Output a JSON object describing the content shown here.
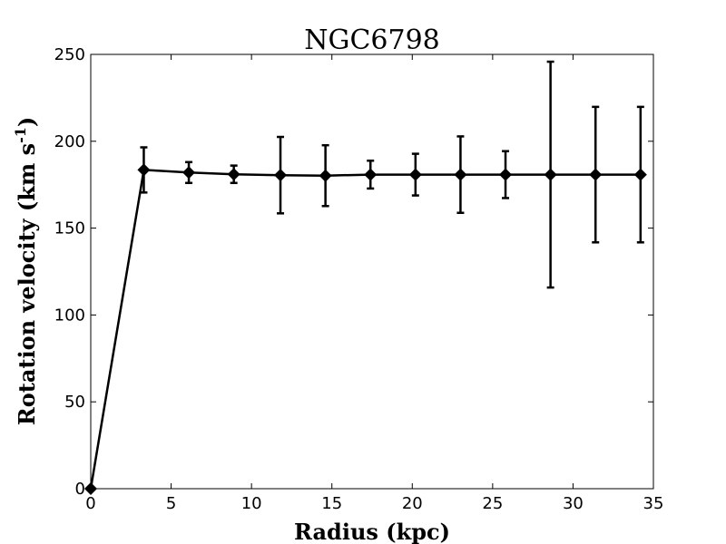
{
  "chart_data": {
    "type": "line",
    "title": "NGC6798",
    "xlabel": "Radius (kpc)",
    "ylabel": "Rotation velocity (km s",
    "ylabel_sup": "-1",
    "ylabel_tail": ")",
    "xlim": [
      0,
      35
    ],
    "ylim": [
      0,
      250
    ],
    "xticks": [
      0,
      5,
      10,
      15,
      20,
      25,
      30,
      35
    ],
    "yticks": [
      0,
      50,
      100,
      150,
      200,
      250
    ],
    "grid": false,
    "legend": "none",
    "series": [
      {
        "marker": "diamond",
        "color": "#000000",
        "points": [
          {
            "x": 0.0,
            "y": 0.0,
            "err": 0
          },
          {
            "x": 3.3,
            "y": 183.5,
            "err": 13
          },
          {
            "x": 6.1,
            "y": 182.0,
            "err": 6
          },
          {
            "x": 8.9,
            "y": 181.0,
            "err": 5
          },
          {
            "x": 11.8,
            "y": 180.5,
            "err": 22
          },
          {
            "x": 14.6,
            "y": 180.2,
            "err": 17.5
          },
          {
            "x": 17.4,
            "y": 180.8,
            "err": 8
          },
          {
            "x": 20.2,
            "y": 180.8,
            "err": 12
          },
          {
            "x": 23.0,
            "y": 180.8,
            "err": 22
          },
          {
            "x": 25.8,
            "y": 180.8,
            "err": 13.5
          },
          {
            "x": 28.6,
            "y": 180.8,
            "err": 65
          },
          {
            "x": 31.4,
            "y": 180.8,
            "err": 39
          },
          {
            "x": 34.2,
            "y": 180.8,
            "err": 39
          }
        ]
      }
    ]
  }
}
